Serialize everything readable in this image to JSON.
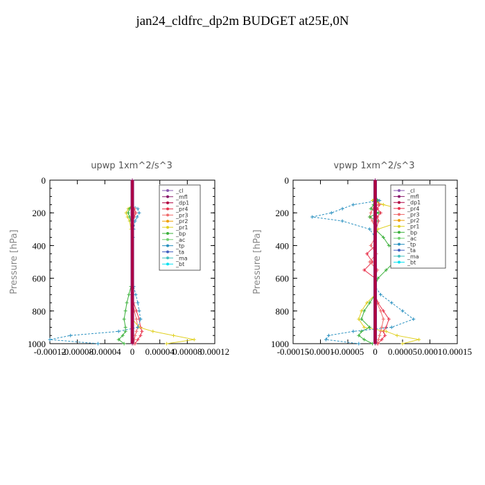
{
  "title": "jan24_cldfrc_dp2m  BUDGET at25E,0N",
  "chart_data": [
    {
      "type": "line",
      "title": "upwp   1xm^2/s^3",
      "ylabel": "Pressure [hPa]",
      "xlabel": "",
      "ylim": [
        1000,
        0
      ],
      "yticks": [
        "0",
        "200",
        "400",
        "600",
        "800",
        "1000"
      ],
      "xlim": [
        -0.00012,
        0.00012
      ],
      "xticks": [
        "-0.00012",
        "-0.00008",
        "-0.00004",
        "0",
        "0.00004",
        "0.00008",
        "0.00012"
      ],
      "legend": "top-right",
      "pressure": [
        0,
        50,
        100,
        150,
        175,
        200,
        225,
        250,
        300,
        350,
        400,
        450,
        500,
        550,
        600,
        650,
        700,
        750,
        800,
        850,
        900,
        925,
        950,
        975,
        1000
      ],
      "series": [
        {
          "name": "_cl",
          "color": "#8a58b0",
          "values": [
            0,
            0,
            0,
            0,
            0,
            0,
            0,
            0,
            0,
            0,
            0,
            0,
            0,
            0,
            0,
            0,
            0,
            0,
            0,
            0,
            0,
            0,
            0,
            0,
            0
          ]
        },
        {
          "name": "_mfl",
          "color": "#8b1a6b",
          "values": [
            0,
            0,
            0,
            0,
            0,
            0,
            0,
            0,
            0,
            0,
            0,
            0,
            0,
            0,
            0,
            0,
            0,
            0,
            0,
            0,
            0,
            0,
            0,
            0,
            0
          ]
        },
        {
          "name": "_dp1",
          "color": "#b00040",
          "values": [
            0,
            0,
            0,
            0,
            0,
            0,
            0,
            0,
            0,
            0,
            0,
            0,
            0,
            0,
            0,
            0,
            0,
            0,
            0,
            0,
            0,
            0,
            0,
            0,
            0
          ]
        },
        {
          "name": "_pr4",
          "color": "#e8304a",
          "values": [
            0,
            0,
            0,
            0,
            3e-06,
            5e-06,
            3e-06,
            0,
            0,
            0,
            0,
            0,
            0,
            0,
            0,
            0,
            0,
            2e-06,
            6e-06,
            1e-05,
            1.2e-05,
            1.4e-05,
            1.2e-05,
            8e-06,
            4e-06
          ]
        },
        {
          "name": "_pr3",
          "color": "#f06a6a",
          "values": [
            0,
            0,
            0,
            0,
            2e-06,
            3e-06,
            2e-06,
            0,
            0,
            0,
            0,
            0,
            0,
            0,
            0,
            0,
            0,
            1e-06,
            3e-06,
            6e-06,
            8e-06,
            6e-06,
            4e-06,
            3e-06,
            2e-06
          ]
        },
        {
          "name": "_pr2",
          "color": "#f0a000",
          "values": [
            0,
            0,
            0,
            0,
            0,
            0,
            0,
            0,
            0,
            0,
            0,
            0,
            0,
            0,
            0,
            0,
            0,
            0,
            0,
            0,
            0,
            0,
            0,
            0,
            0
          ]
        },
        {
          "name": "_pr1",
          "color": "#e0d020",
          "values": [
            0,
            0,
            0,
            0,
            -6e-06,
            -9e-06,
            -7e-06,
            -4e-06,
            -2e-06,
            0,
            0,
            0,
            0,
            0,
            0,
            0,
            0,
            0,
            0,
            0,
            1e-05,
            3e-05,
            6e-05,
            9e-05,
            5e-05
          ]
        },
        {
          "name": "_bp",
          "color": "#3ab03a",
          "values": [
            0,
            0,
            0,
            0,
            -4e-06,
            -6e-06,
            -4e-06,
            -2e-06,
            0,
            0,
            0,
            0,
            0,
            0,
            0,
            -2e-06,
            -5e-06,
            -8e-06,
            -1e-05,
            -1.2e-05,
            -1e-05,
            -1e-05,
            -1.4e-05,
            -2e-05,
            -1.2e-05
          ]
        },
        {
          "name": "_ac",
          "color": "#70d070",
          "values": [
            0,
            0,
            0,
            0,
            0,
            0,
            0,
            0,
            0,
            0,
            0,
            0,
            0,
            0,
            0,
            0,
            0,
            0,
            0,
            0,
            0,
            0,
            0,
            0,
            0
          ]
        },
        {
          "name": "_tp",
          "color": "#2890c0",
          "values": [
            0,
            0,
            0,
            0,
            8e-06,
            1e-05,
            7e-06,
            4e-06,
            2e-06,
            1e-06,
            0,
            0,
            0,
            0,
            0,
            2e-06,
            5e-06,
            8e-06,
            1e-05,
            1.2e-05,
            8e-06,
            -2e-05,
            -9e-05,
            -0.00012,
            -5e-05
          ]
        },
        {
          "name": "_ta",
          "color": "#4060c0",
          "values": [
            0,
            0,
            0,
            0,
            0,
            0,
            0,
            0,
            0,
            0,
            0,
            0,
            0,
            0,
            0,
            0,
            0,
            0,
            0,
            0,
            0,
            0,
            0,
            0,
            0
          ]
        },
        {
          "name": "_ma",
          "color": "#40c0c0",
          "values": [
            0,
            0,
            0,
            0,
            0,
            0,
            0,
            0,
            0,
            0,
            0,
            0,
            0,
            0,
            0,
            0,
            0,
            0,
            0,
            0,
            0,
            0,
            0,
            0,
            0
          ]
        },
        {
          "name": "_bt",
          "color": "#00e0f0",
          "values": [
            0,
            0,
            0,
            0,
            0,
            0,
            0,
            0,
            0,
            0,
            0,
            0,
            0,
            0,
            0,
            0,
            0,
            0,
            0,
            0,
            0,
            0,
            0,
            0,
            0
          ]
        }
      ]
    },
    {
      "type": "line",
      "title": "vpwp   1xm^2/s^3",
      "ylabel": "Pressure [hPa]",
      "xlabel": "",
      "ylim": [
        1000,
        0
      ],
      "yticks": [
        "0",
        "200",
        "400",
        "600",
        "800",
        "1000"
      ],
      "xlim": [
        -0.00015,
        0.00015
      ],
      "xticks": [
        "-0.00015",
        "-0.0001",
        "-0.00005",
        "0",
        "0.00005",
        "0.0001",
        "0.00015"
      ],
      "legend": "top-right",
      "pressure": [
        0,
        50,
        100,
        125,
        150,
        175,
        200,
        225,
        250,
        300,
        350,
        400,
        450,
        500,
        550,
        600,
        650,
        700,
        750,
        800,
        850,
        900,
        925,
        950,
        975,
        1000
      ],
      "series": [
        {
          "name": "_cl",
          "color": "#8a58b0",
          "values": [
            0,
            0,
            0,
            0,
            0,
            0,
            0,
            0,
            0,
            0,
            0,
            0,
            0,
            0,
            0,
            0,
            0,
            0,
            0,
            0,
            0,
            0,
            0,
            0,
            0,
            0
          ]
        },
        {
          "name": "_mfl",
          "color": "#8b1a6b",
          "values": [
            0,
            0,
            0,
            0,
            0,
            0,
            0,
            0,
            0,
            0,
            0,
            0,
            0,
            0,
            0,
            0,
            0,
            0,
            0,
            0,
            0,
            0,
            0,
            0,
            0,
            0
          ]
        },
        {
          "name": "_dp1",
          "color": "#b00040",
          "values": [
            0,
            0,
            0,
            0,
            0,
            0,
            0,
            0,
            0,
            0,
            0,
            0,
            0,
            0,
            0,
            0,
            0,
            0,
            0,
            0,
            0,
            0,
            0,
            0,
            0,
            0
          ]
        },
        {
          "name": "_pr4",
          "color": "#e8304a",
          "values": [
            0,
            0,
            0,
            5e-06,
            8e-06,
            4e-06,
            1e-05,
            4e-06,
            6e-06,
            2e-06,
            0,
            0,
            -1.5e-05,
            -5e-06,
            -2e-05,
            0,
            0,
            0,
            5e-06,
            1.5e-05,
            2.5e-05,
            2e-05,
            1.5e-05,
            1.8e-05,
            1.2e-05,
            5e-06
          ]
        },
        {
          "name": "_pr3",
          "color": "#f06a6a",
          "values": [
            0,
            0,
            0,
            3e-06,
            6e-06,
            -4e-06,
            -8e-06,
            -1e-05,
            -5e-06,
            0,
            0,
            -8e-06,
            2e-06,
            -1e-05,
            4e-06,
            0,
            0,
            0,
            3e-06,
            1e-05,
            1.5e-05,
            1.2e-05,
            1e-05,
            8e-06,
            6e-06,
            3e-06
          ]
        },
        {
          "name": "_pr2",
          "color": "#f0a000",
          "values": [
            0,
            0,
            0,
            0,
            0,
            0,
            0,
            0,
            0,
            0,
            0,
            0,
            0,
            0,
            0,
            0,
            0,
            0,
            0,
            0,
            0,
            0,
            0,
            0,
            0,
            0
          ]
        },
        {
          "name": "_pr1",
          "color": "#e0d020",
          "values": [
            0,
            0,
            0,
            -5e-06,
            1.5e-05,
            4.5e-05,
            4e-05,
            6e-05,
            5e-05,
            5e-06,
            0,
            0,
            0,
            0,
            0,
            0,
            0,
            0,
            -1.5e-05,
            -2.5e-05,
            -3e-05,
            -2e-05,
            2e-05,
            4e-05,
            8e-05,
            5e-05
          ]
        },
        {
          "name": "_bp",
          "color": "#3ab03a",
          "values": [
            0,
            0,
            0,
            5e-06,
            -3e-06,
            -8e-06,
            6e-06,
            -1e-05,
            3e-06,
            0,
            1.5e-05,
            2.5e-05,
            6e-05,
            3.5e-05,
            2e-05,
            5e-06,
            0,
            0,
            -1e-05,
            -2e-05,
            -2.5e-05,
            -1e-05,
            -2.5e-05,
            -3e-05,
            -2e-05,
            -5e-06
          ]
        },
        {
          "name": "_ac",
          "color": "#70d070",
          "values": [
            0,
            0,
            0,
            0,
            0,
            0,
            0,
            0,
            0,
            0,
            0,
            0,
            0,
            0,
            0,
            0,
            0,
            0,
            0,
            0,
            0,
            0,
            0,
            0,
            0,
            0
          ]
        },
        {
          "name": "_tp",
          "color": "#2890c0",
          "values": [
            0,
            0,
            0,
            8e-06,
            -4e-05,
            -6e-05,
            -8e-05,
            -0.000115,
            -6e-05,
            -1e-05,
            0,
            0,
            0,
            0,
            0,
            0,
            0,
            1e-05,
            3e-05,
            5e-05,
            7e-05,
            3e-05,
            -4e-05,
            -8.5e-05,
            -9e-05,
            -3e-05
          ]
        },
        {
          "name": "_ta",
          "color": "#4060c0",
          "values": [
            0,
            0,
            0,
            0,
            0,
            0,
            0,
            0,
            0,
            0,
            0,
            0,
            0,
            0,
            0,
            0,
            0,
            0,
            0,
            0,
            0,
            0,
            0,
            0,
            0,
            0
          ]
        },
        {
          "name": "_ma",
          "color": "#40c0c0",
          "values": [
            0,
            0,
            0,
            0,
            0,
            0,
            0,
            0,
            0,
            0,
            0,
            0,
            0,
            0,
            0,
            0,
            0,
            0,
            0,
            0,
            0,
            0,
            0,
            0,
            0,
            0
          ]
        },
        {
          "name": "_bt",
          "color": "#00e0f0",
          "values": [
            0,
            0,
            0,
            0,
            0,
            0,
            0,
            0,
            0,
            0,
            0,
            0,
            0,
            0,
            0,
            0,
            0,
            0,
            0,
            0,
            0,
            0,
            0,
            0,
            0,
            0
          ]
        }
      ]
    }
  ]
}
